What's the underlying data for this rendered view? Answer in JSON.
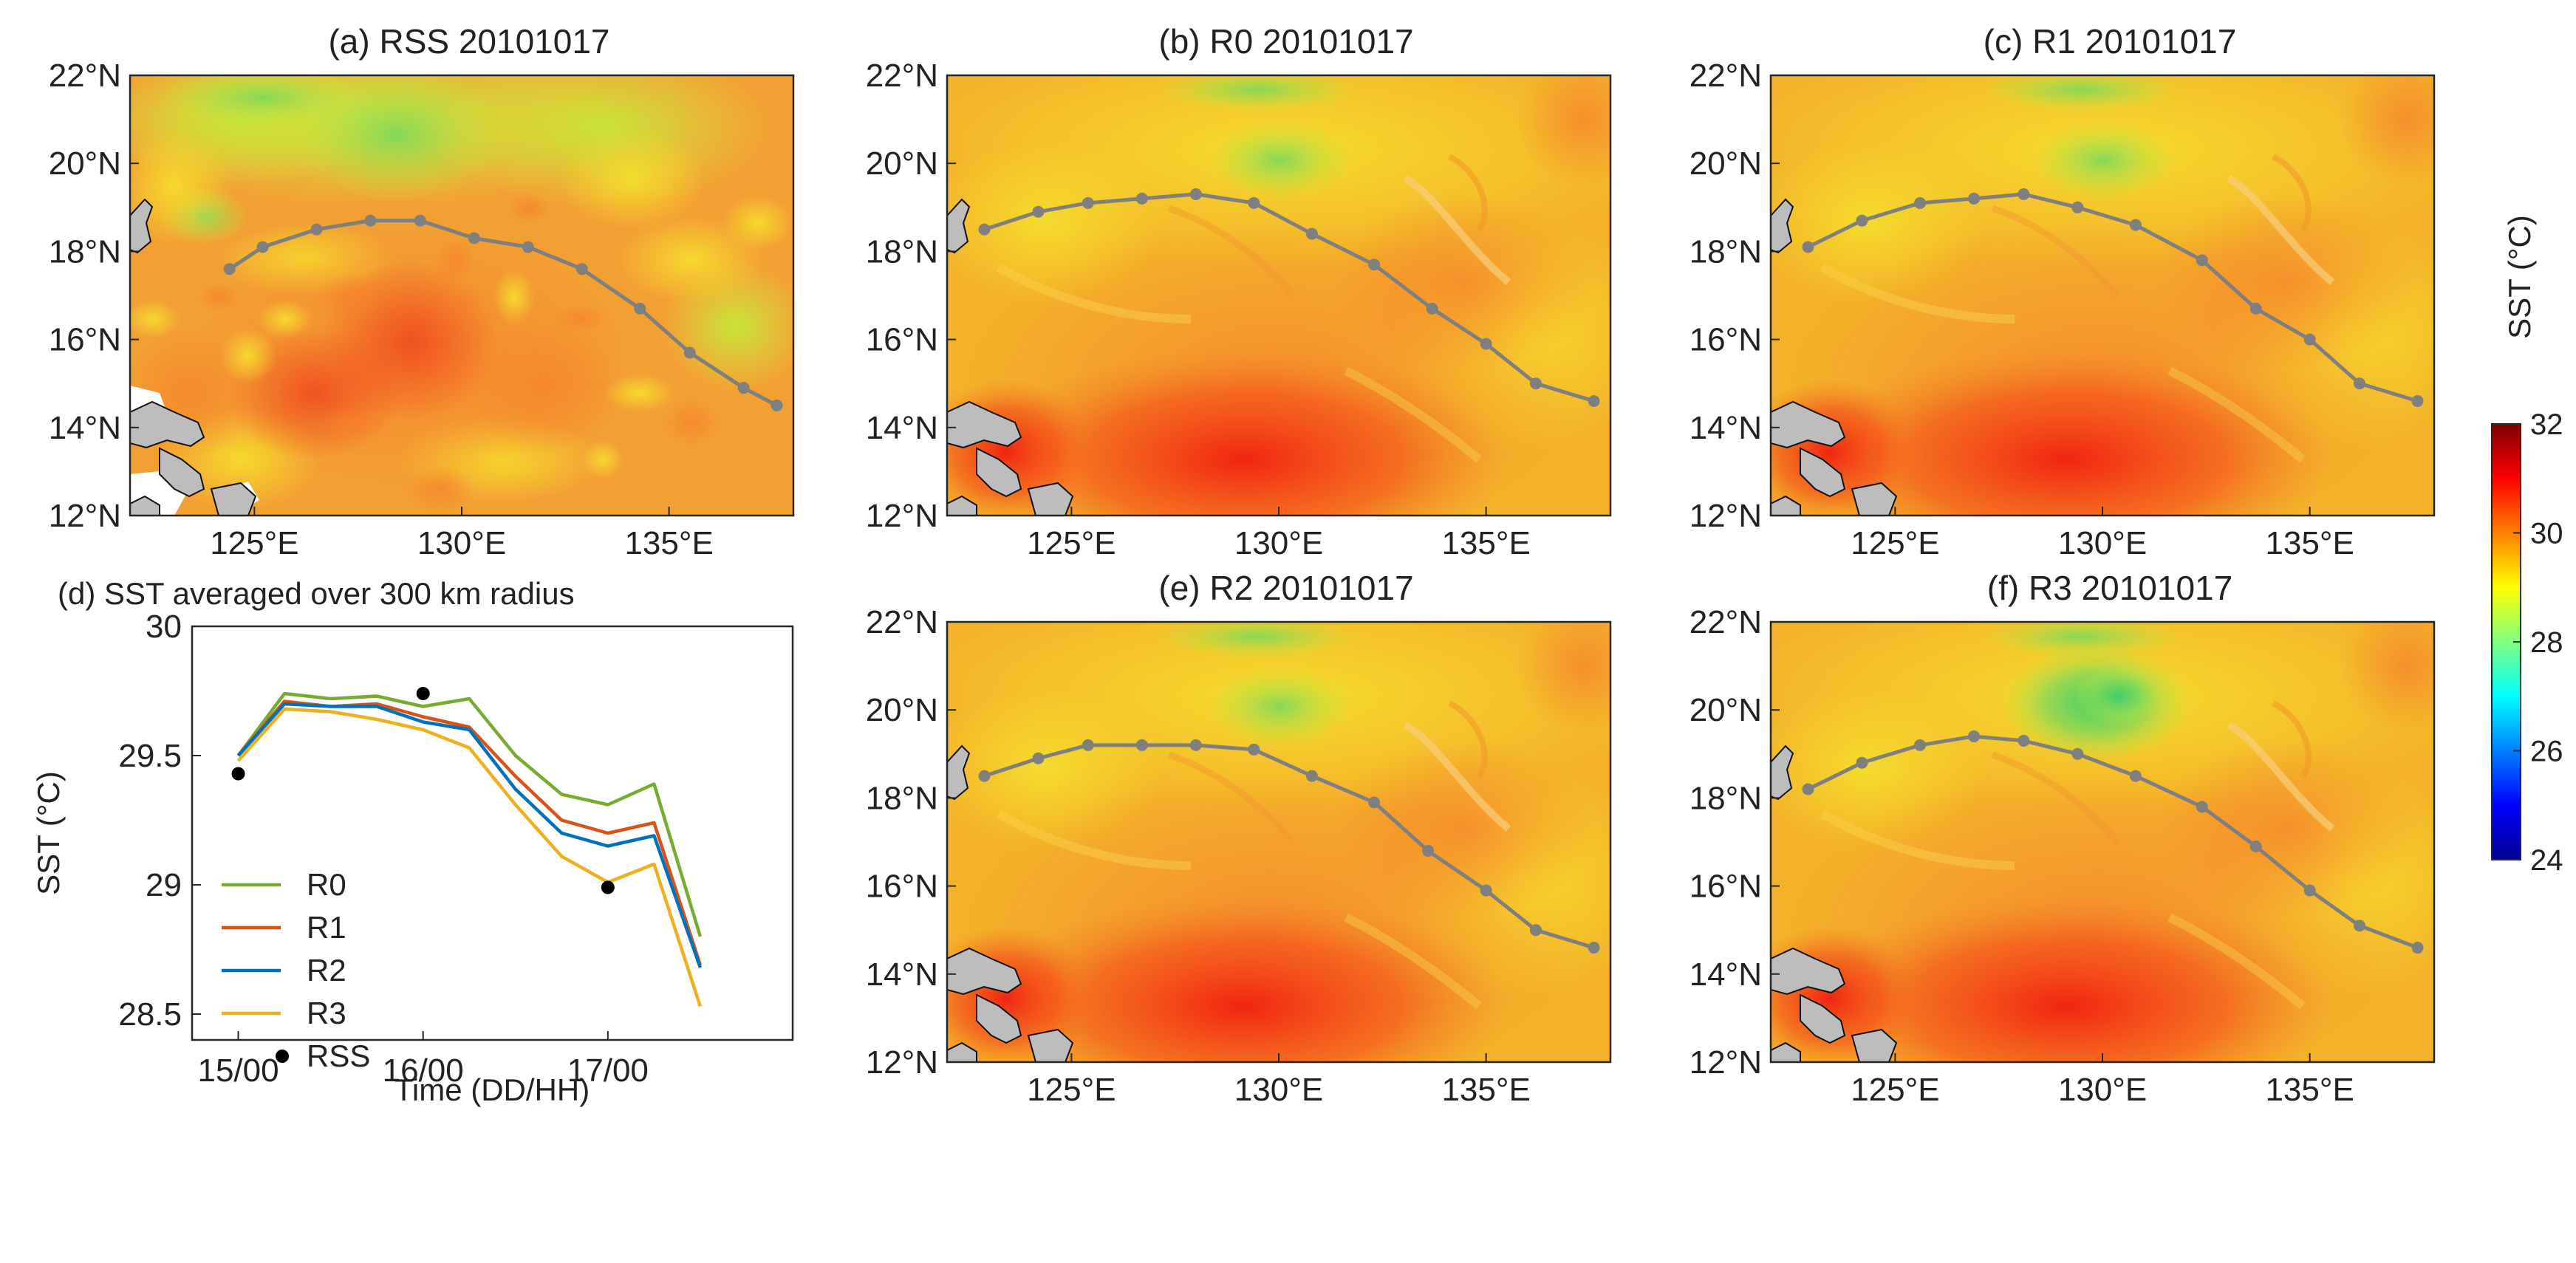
{
  "colorbar": {
    "label": "SST (°C)",
    "min": 24,
    "max": 32,
    "ticks": [
      24,
      26,
      28,
      30,
      32
    ],
    "colors": [
      "#00008f",
      "#0000ff",
      "#0080ff",
      "#00ffff",
      "#80ff80",
      "#ffff00",
      "#ff8000",
      "#ff0000",
      "#800000"
    ]
  },
  "map_axes": {
    "lat_ticks": [
      "12°N",
      "14°N",
      "16°N",
      "18°N",
      "20°N",
      "22°N"
    ],
    "lon_ticks": [
      "125°E",
      "130°E",
      "135°E"
    ],
    "lon_range": [
      122,
      138
    ],
    "lat_range": [
      12,
      22
    ]
  },
  "panels": [
    {
      "id": "a",
      "title": "(a) RSS 20101017",
      "theme": "rss",
      "track": [
        [
          124.4,
          17.6
        ],
        [
          125.2,
          18.1
        ],
        [
          126.5,
          18.5
        ],
        [
          127.8,
          18.7
        ],
        [
          129.0,
          18.7
        ],
        [
          130.3,
          18.3
        ],
        [
          131.6,
          18.1
        ],
        [
          132.9,
          17.6
        ],
        [
          134.3,
          16.7
        ],
        [
          135.5,
          15.7
        ],
        [
          136.8,
          14.9
        ],
        [
          137.6,
          14.5
        ]
      ]
    },
    {
      "id": "b",
      "title": "(b) R0 20101017",
      "theme": "model",
      "track": [
        [
          122.9,
          18.5
        ],
        [
          124.2,
          18.9
        ],
        [
          125.4,
          19.1
        ],
        [
          126.7,
          19.2
        ],
        [
          128.0,
          19.3
        ],
        [
          129.4,
          19.1
        ],
        [
          130.8,
          18.4
        ],
        [
          132.3,
          17.7
        ],
        [
          133.7,
          16.7
        ],
        [
          135.0,
          15.9
        ],
        [
          136.2,
          15.0
        ],
        [
          137.6,
          14.6
        ]
      ]
    },
    {
      "id": "c",
      "title": "(c) R1 20101017",
      "theme": "model",
      "track": [
        [
          122.9,
          18.1
        ],
        [
          124.2,
          18.7
        ],
        [
          125.6,
          19.1
        ],
        [
          126.9,
          19.2
        ],
        [
          128.1,
          19.3
        ],
        [
          129.4,
          19.0
        ],
        [
          130.8,
          18.6
        ],
        [
          132.4,
          17.8
        ],
        [
          133.7,
          16.7
        ],
        [
          135.0,
          16.0
        ],
        [
          136.2,
          15.0
        ],
        [
          137.6,
          14.6
        ]
      ]
    },
    {
      "id": "e",
      "title": "(e) R2 20101017",
      "theme": "model",
      "track": [
        [
          122.9,
          18.5
        ],
        [
          124.2,
          18.9
        ],
        [
          125.4,
          19.2
        ],
        [
          126.7,
          19.2
        ],
        [
          128.0,
          19.2
        ],
        [
          129.4,
          19.1
        ],
        [
          130.8,
          18.5
        ],
        [
          132.3,
          17.9
        ],
        [
          133.6,
          16.8
        ],
        [
          135.0,
          15.9
        ],
        [
          136.2,
          15.0
        ],
        [
          137.6,
          14.6
        ]
      ]
    },
    {
      "id": "f",
      "title": "(f) R3 20101017",
      "theme": "model_f",
      "track": [
        [
          122.9,
          18.2
        ],
        [
          124.2,
          18.8
        ],
        [
          125.6,
          19.2
        ],
        [
          126.9,
          19.4
        ],
        [
          128.1,
          19.3
        ],
        [
          129.4,
          19.0
        ],
        [
          130.8,
          18.5
        ],
        [
          132.4,
          17.8
        ],
        [
          133.7,
          16.9
        ],
        [
          135.0,
          15.9
        ],
        [
          136.2,
          15.1
        ],
        [
          137.6,
          14.6
        ]
      ]
    }
  ],
  "chart_data": {
    "type": "line",
    "title": "(d) SST averaged over 300 km radius",
    "xlabel": "Time (DD/HH)",
    "ylabel": "SST (°C)",
    "xticks": [
      0,
      4,
      8
    ],
    "xtick_labels": [
      "15/00",
      "16/00",
      "17/00"
    ],
    "xlim": [
      -1,
      12
    ],
    "ylim": [
      28.4,
      30
    ],
    "yticks": [
      28.5,
      29,
      29.5,
      30
    ],
    "ytick_labels": [
      "28.5",
      "29",
      "29.5",
      "30"
    ],
    "x": [
      0,
      1,
      2,
      3,
      4,
      5,
      6,
      7,
      8,
      9,
      10
    ],
    "series": [
      {
        "name": "R0",
        "color": "#77ac30",
        "values": [
          29.5,
          29.74,
          29.72,
          29.73,
          29.69,
          29.72,
          29.5,
          29.35,
          29.31,
          29.39,
          28.8
        ]
      },
      {
        "name": "R1",
        "color": "#d95319",
        "values": [
          29.5,
          29.71,
          29.69,
          29.7,
          29.65,
          29.61,
          29.42,
          29.25,
          29.2,
          29.24,
          28.69
        ]
      },
      {
        "name": "R2",
        "color": "#0072bd",
        "values": [
          29.5,
          29.7,
          29.69,
          29.69,
          29.63,
          29.6,
          29.37,
          29.2,
          29.15,
          29.19,
          28.68
        ]
      },
      {
        "name": "R3",
        "color": "#edb120",
        "values": [
          29.48,
          29.68,
          29.67,
          29.64,
          29.6,
          29.53,
          29.31,
          29.11,
          29.01,
          29.08,
          28.53
        ]
      }
    ],
    "scatter": {
      "name": "RSS",
      "color": "#000000",
      "x": [
        0,
        4,
        8
      ],
      "values": [
        29.43,
        29.74,
        28.99
      ]
    }
  }
}
